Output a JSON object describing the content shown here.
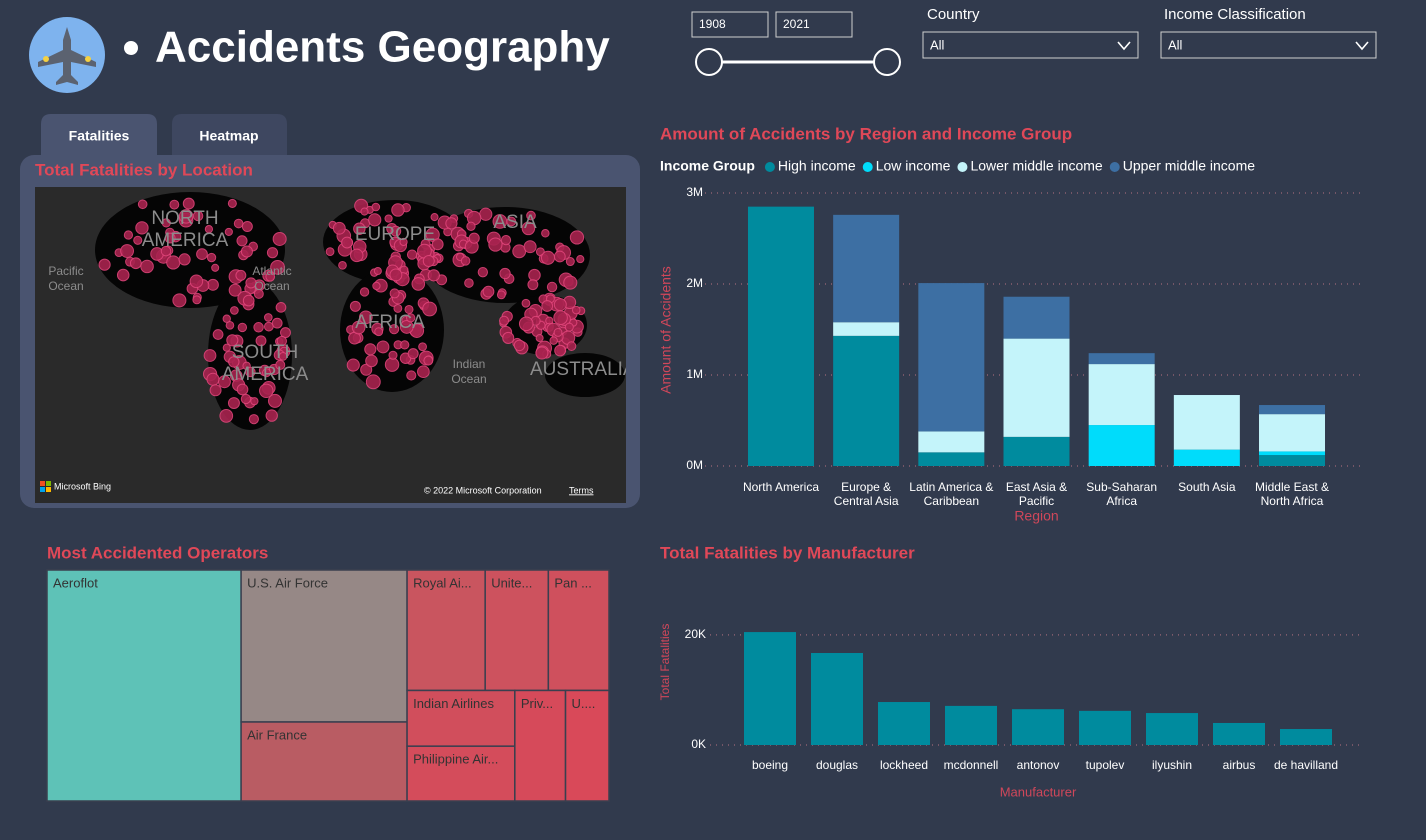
{
  "header": {
    "title": "Accidents Geography"
  },
  "filters": {
    "year_from": 1908,
    "year_to": 2021,
    "country": {
      "label": "Country",
      "value": "All"
    },
    "income": {
      "label": "Income Classification",
      "value": "All"
    }
  },
  "tabs": [
    "Fatalities",
    "Heatmap"
  ],
  "chart_data": [
    {
      "type": "map",
      "title": "Total Fatalities by Location",
      "labels": [
        "NORTH AMERICA",
        "Pacific Ocean",
        "Atlantic Ocean",
        "SOUTH AMERICA",
        "EUROPE",
        "AFRICA",
        "ASIA",
        "Indian Ocean",
        "AUSTRALIA"
      ],
      "attribution": [
        "Microsoft Bing",
        "© 2022 Microsoft Corporation",
        "Terms"
      ]
    },
    {
      "type": "stacked-bar",
      "title": "Amount of Accidents by Region and Income Group",
      "legend_title": "Income Group",
      "x_label": "Region",
      "y_label": "Amount of Accidents",
      "categories": [
        "North America",
        "Europe & Central Asia",
        "Latin America & Caribbean",
        "East Asia & Pacific",
        "Sub-Saharan Africa",
        "South Asia",
        "Middle East & North Africa"
      ],
      "series": [
        {
          "name": "High income",
          "color": "#008b9e",
          "values": [
            2.85,
            1.43,
            0.15,
            0.32,
            null,
            null,
            0.12
          ]
        },
        {
          "name": "Low income",
          "color": "#00dcfb",
          "values": [
            null,
            null,
            null,
            null,
            0.45,
            0.18,
            0.04
          ]
        },
        {
          "name": "Lower middle income",
          "color": "#c4f4fa",
          "values": [
            null,
            0.15,
            0.23,
            1.08,
            0.67,
            0.6,
            0.41
          ]
        },
        {
          "name": "Upper middle income",
          "color": "#3d6fa3",
          "values": [
            null,
            1.18,
            1.63,
            0.46,
            0.12,
            null,
            0.1
          ]
        }
      ],
      "ylim": [
        0,
        3
      ],
      "yticks": [
        {
          "value": 0,
          "label": "0M"
        },
        {
          "value": 1,
          "label": "1M"
        },
        {
          "value": 2,
          "label": "2M"
        },
        {
          "value": 3,
          "label": "3M"
        }
      ],
      "grid": true
    },
    {
      "type": "treemap",
      "title": "Most Accidented Operators",
      "categories": [
        "Aeroflot",
        "U.S. Air Force",
        "Air France",
        "Royal Ai...",
        "Unite...",
        "Pan ...",
        "Indian Airlines",
        "Philippine Air...",
        "Priv...",
        "U...."
      ],
      "values": [
        448,
        252,
        131,
        94,
        76,
        73,
        60,
        59,
        56,
        48
      ],
      "colors": [
        "#5ec2b7",
        "#968886",
        "#b95c63",
        "#c9555f",
        "#cd525e",
        "#cf505d",
        "#d14e5c",
        "#d44c5b",
        "#d64a5a",
        "#d94959"
      ]
    },
    {
      "type": "bar",
      "title": "Total Fatalities by Manufacturer",
      "x_label": "Manufacturer",
      "y_label": "Total Fatalities",
      "categories": [
        "boeing",
        "douglas",
        "lockheed",
        "mcdonnell",
        "antonov",
        "tupolev",
        "ilyushin",
        "airbus",
        "de havilland"
      ],
      "values": [
        20.5,
        16.7,
        7.8,
        7.1,
        6.5,
        6.2,
        5.8,
        4.0,
        2.9
      ],
      "color": "#008b9e",
      "ylim": [
        0,
        23.6
      ],
      "yticks": [
        {
          "value": 0,
          "label": "0K"
        },
        {
          "value": 20,
          "label": "20K"
        }
      ],
      "grid": true
    }
  ]
}
